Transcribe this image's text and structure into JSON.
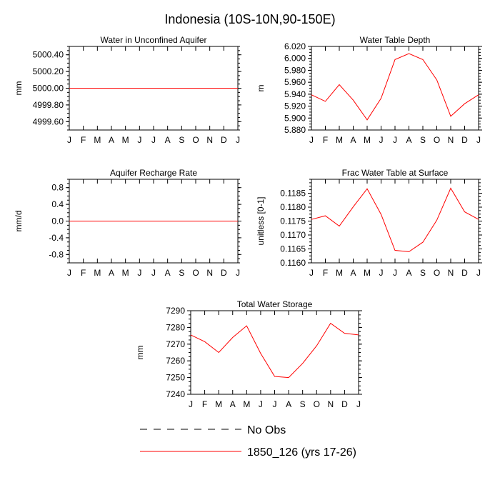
{
  "title": "Indonesia (10S-10N,90-150E)",
  "chart_data": [
    {
      "type": "line",
      "title": "Water in Unconfined Aquifer",
      "ylabel": "mm",
      "x": [
        "J",
        "F",
        "M",
        "A",
        "M",
        "J",
        "J",
        "A",
        "S",
        "O",
        "N",
        "D",
        "J"
      ],
      "ylim": [
        4999.5,
        5000.5
      ],
      "yticks": [
        4999.6,
        4999.8,
        5000.0,
        5000.2,
        5000.4
      ],
      "ytick_labels": [
        "4999.60",
        "4999.80",
        "5000.00",
        "5000.20",
        "5000.40"
      ],
      "series": [
        {
          "values": [
            5000,
            5000,
            5000,
            5000,
            5000,
            5000,
            5000,
            5000,
            5000,
            5000,
            5000,
            5000,
            5000
          ],
          "color": "#ff0000"
        }
      ]
    },
    {
      "type": "line",
      "title": "Water Table Depth",
      "ylabel": "m",
      "x": [
        "J",
        "F",
        "M",
        "A",
        "M",
        "J",
        "J",
        "A",
        "S",
        "O",
        "N",
        "D",
        "J"
      ],
      "ylim": [
        5.88,
        6.02
      ],
      "yticks": [
        5.88,
        5.9,
        5.92,
        5.94,
        5.96,
        5.98,
        6.0,
        6.02
      ],
      "ytick_labels": [
        "5.880",
        "5.900",
        "5.920",
        "5.940",
        "5.960",
        "5.980",
        "6.000",
        "6.020"
      ],
      "series": [
        {
          "values": [
            5.939,
            5.928,
            5.956,
            5.93,
            5.897,
            5.933,
            5.998,
            6.008,
            5.998,
            5.964,
            5.903,
            5.924,
            5.939
          ],
          "color": "#ff0000"
        }
      ]
    },
    {
      "type": "line",
      "title": "Aquifer Recharge Rate",
      "ylabel": "mm/d",
      "x": [
        "J",
        "F",
        "M",
        "A",
        "M",
        "J",
        "J",
        "A",
        "S",
        "O",
        "N",
        "D",
        "J"
      ],
      "ylim": [
        -1.0,
        1.0
      ],
      "yticks": [
        -0.8,
        -0.4,
        0.0,
        0.4,
        0.8
      ],
      "ytick_labels": [
        "-0.8",
        "-0.4",
        "0.0",
        "0.4",
        "0.8"
      ],
      "series": [
        {
          "values": [
            0,
            0,
            0,
            0,
            0,
            0,
            0,
            0,
            0,
            0,
            0,
            0,
            0
          ],
          "color": "#ff0000"
        }
      ]
    },
    {
      "type": "line",
      "title": "Frac Water Table at Surface",
      "ylabel": "unitless [0-1]",
      "x": [
        "J",
        "F",
        "M",
        "A",
        "M",
        "J",
        "J",
        "A",
        "S",
        "O",
        "N",
        "D",
        "J"
      ],
      "ylim": [
        0.116,
        0.119
      ],
      "yticks": [
        0.116,
        0.1165,
        0.117,
        0.1175,
        0.118,
        0.1185
      ],
      "ytick_labels": [
        "0.1160",
        "0.1165",
        "0.1170",
        "0.1175",
        "0.1180",
        "0.1185"
      ],
      "series": [
        {
          "values": [
            0.11756,
            0.11769,
            0.11732,
            0.11801,
            0.11866,
            0.11774,
            0.11645,
            0.1164,
            0.11674,
            0.11753,
            0.11868,
            0.11783,
            0.11756
          ],
          "color": "#ff0000"
        }
      ]
    },
    {
      "type": "line",
      "title": "Total Water Storage",
      "ylabel": "mm",
      "x": [
        "J",
        "F",
        "M",
        "A",
        "M",
        "J",
        "J",
        "A",
        "S",
        "O",
        "N",
        "D",
        "J"
      ],
      "ylim": [
        7240,
        7290
      ],
      "yticks": [
        7240,
        7250,
        7260,
        7270,
        7280,
        7290
      ],
      "ytick_labels": [
        "7240",
        "7250",
        "7260",
        "7270",
        "7280",
        "7290"
      ],
      "series": [
        {
          "values": [
            7275.5,
            7271.5,
            7265,
            7274,
            7281,
            7264.5,
            7250.7,
            7250,
            7258.5,
            7269,
            7282.5,
            7276.5,
            7275.5
          ],
          "color": "#ff0000"
        }
      ]
    }
  ],
  "legend": [
    {
      "label": "No Obs",
      "style": "dashed",
      "color": "#000000"
    },
    {
      "label": "1850_126 (yrs 17-26)",
      "style": "solid",
      "color": "#ff0000"
    }
  ]
}
